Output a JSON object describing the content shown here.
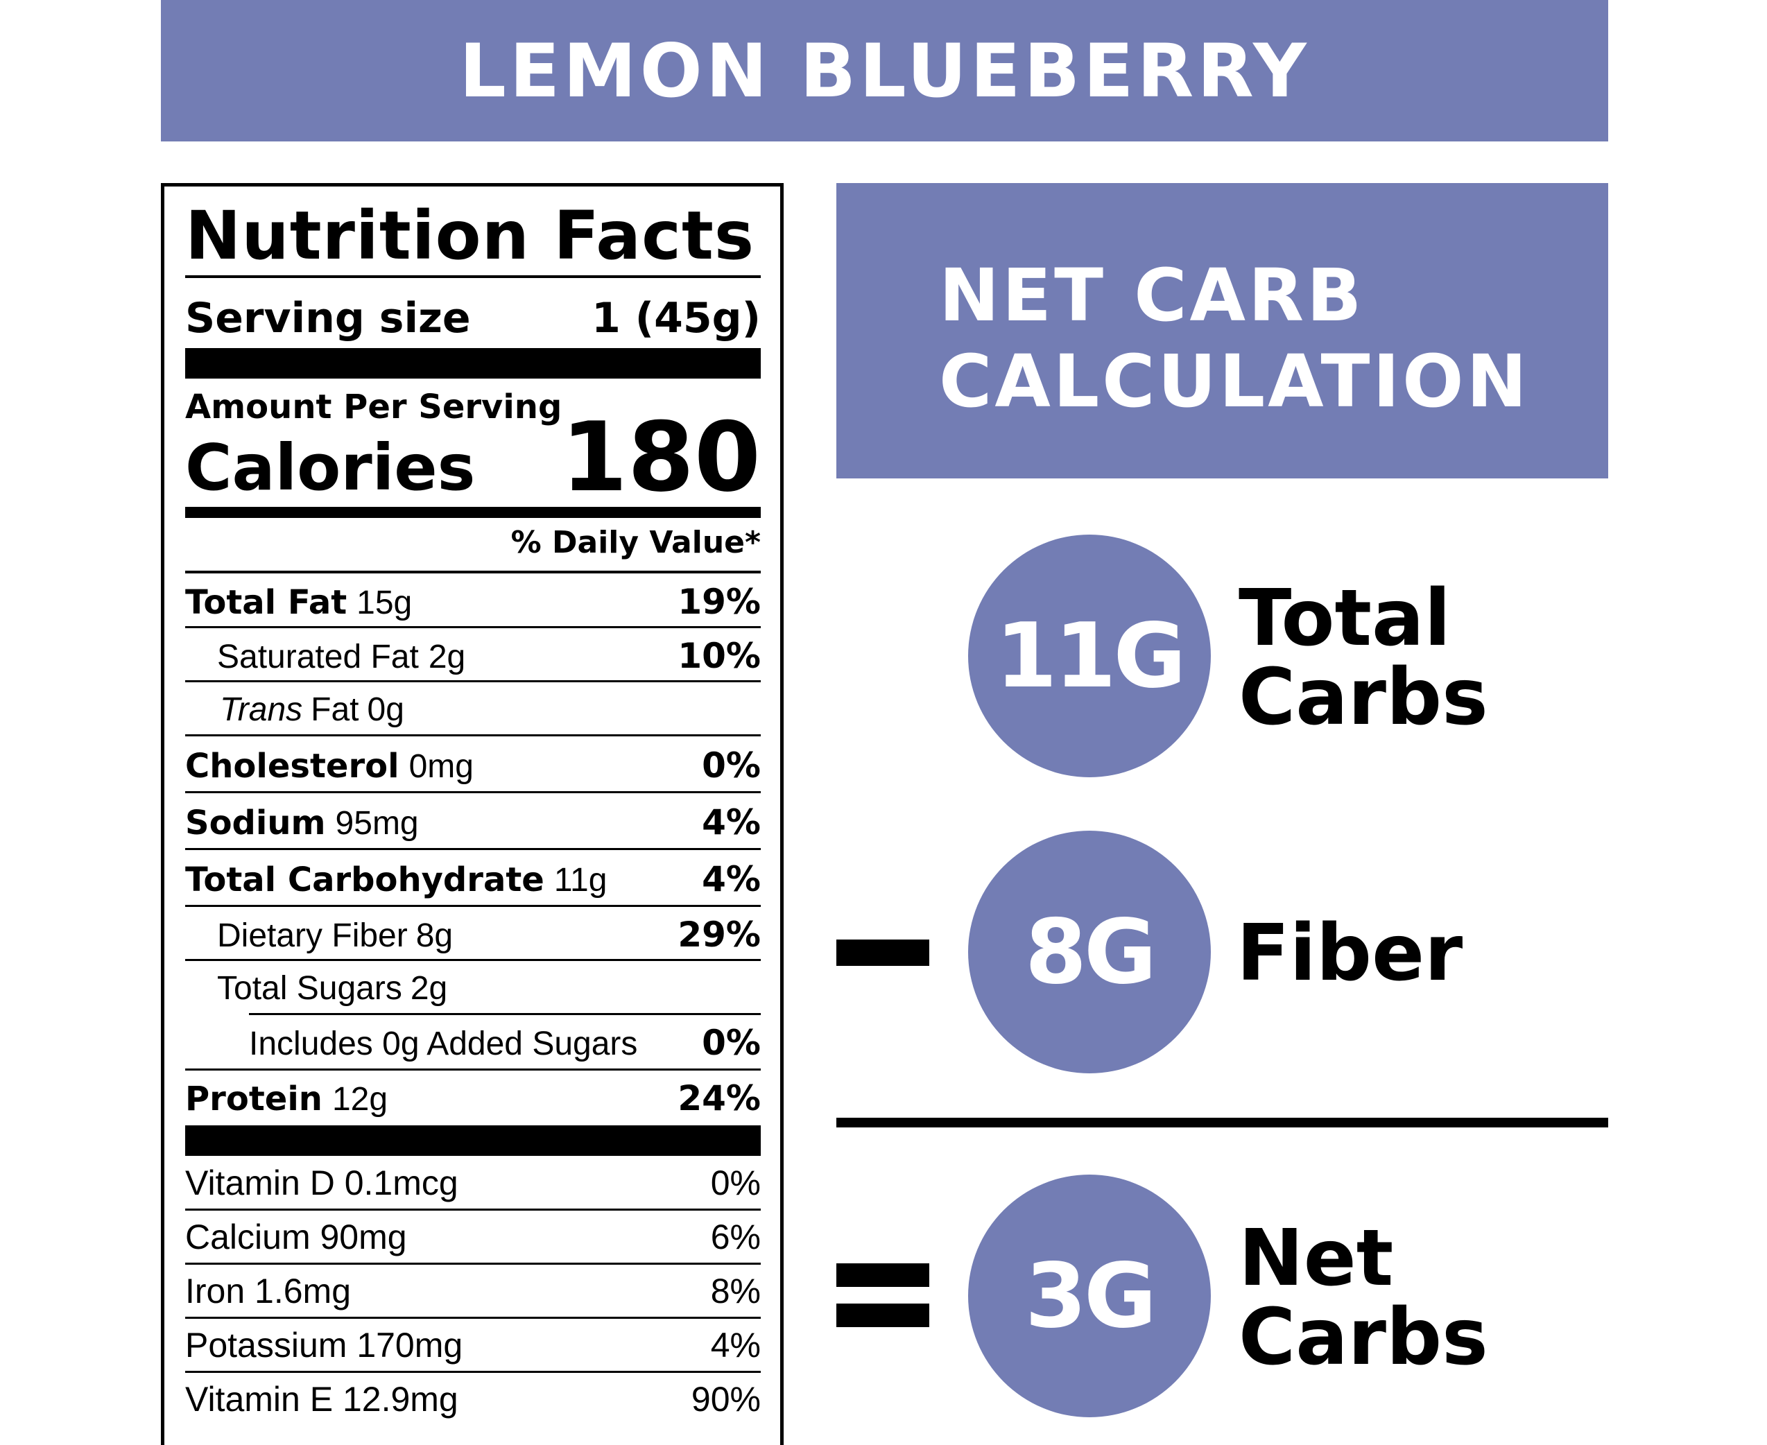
{
  "banner": {
    "title": "LEMON BLUEBERRY"
  },
  "label": {
    "title": "Nutrition Facts",
    "serving_label": "Serving size",
    "serving_value": "1 (45g)",
    "amount_per_serving": "Amount Per Serving",
    "calories_label": "Calories",
    "calories_value": "180",
    "daily_value_header": "% Daily Value*",
    "nutrients": [
      {
        "name": "Total Fat",
        "amount": "15g",
        "dv": "19%"
      },
      {
        "name": "Saturated Fat",
        "amount": "2g",
        "dv": "10%"
      },
      {
        "name_italic": "Trans",
        "name": "Fat",
        "amount": "0g",
        "dv": ""
      },
      {
        "name": "Cholesterol",
        "amount": "0mg",
        "dv": "0%"
      },
      {
        "name": "Sodium",
        "amount": "95mg",
        "dv": "4%"
      },
      {
        "name": "Total Carbohydrate",
        "amount": "11g",
        "dv": "4%"
      },
      {
        "name": "Dietary Fiber",
        "amount": "8g",
        "dv": "29%"
      },
      {
        "name": "Total Sugars",
        "amount": "2g",
        "dv": ""
      },
      {
        "name": "Includes 0g Added Sugars",
        "amount": "",
        "dv": "0%"
      },
      {
        "name": "Protein",
        "amount": "12g",
        "dv": "24%"
      }
    ],
    "vitamins": [
      {
        "name": "Vitamin D 0.1mcg",
        "dv": "0%"
      },
      {
        "name": "Calcium 90mg",
        "dv": "6%"
      },
      {
        "name": "Iron 1.6mg",
        "dv": "8%"
      },
      {
        "name": "Potassium 170mg",
        "dv": "4%"
      },
      {
        "name": "Vitamin E 12.9mg",
        "dv": "90%"
      }
    ]
  },
  "calc": {
    "title_line1": "NET CARB",
    "title_line2": "CALCULATION",
    "total": {
      "value": "11G",
      "label_line1": "Total",
      "label_line2": "Carbs"
    },
    "fiber": {
      "value": "8G",
      "label": "Fiber"
    },
    "net": {
      "value": "3G",
      "label_line1": "Net",
      "label_line2": "Carbs"
    }
  },
  "colors": {
    "accent": "#737db4",
    "text": "#000000",
    "background": "#ffffff"
  }
}
